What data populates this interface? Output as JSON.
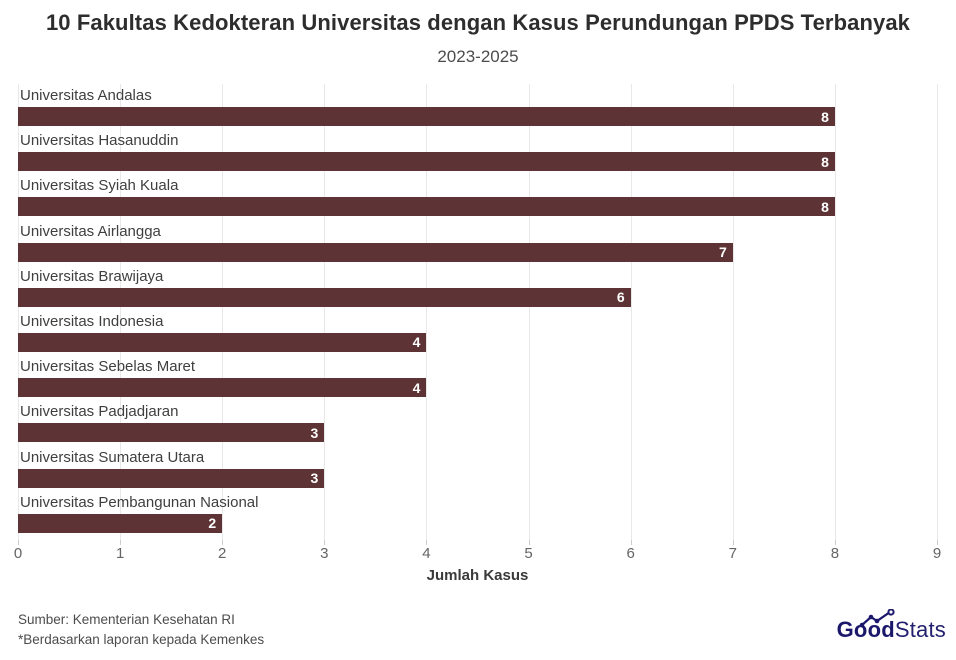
{
  "header": {
    "title": "10 Fakultas Kedokteran Universitas dengan Kasus Perundungan PPDS Terbanyak",
    "subtitle": "2023-2025"
  },
  "chart_data": {
    "type": "bar",
    "orientation": "horizontal",
    "title": "10 Fakultas Kedokteran Universitas dengan Kasus Perundungan PPDS Terbanyak",
    "subtitle": "2023-2025",
    "categories": [
      "Universitas Andalas",
      "Universitas Hasanuddin",
      "Universitas Syiah Kuala",
      "Universitas Airlangga",
      "Universitas Brawijaya",
      "Universitas Indonesia",
      "Universitas Sebelas Maret",
      "Universitas Padjadjaran",
      "Universitas Sumatera Utara",
      "Universitas Pembangunan Nasional"
    ],
    "values": [
      8,
      8,
      8,
      7,
      6,
      4,
      4,
      3,
      3,
      2
    ],
    "xlabel": "Jumlah Kasus",
    "xlim": [
      0,
      9
    ],
    "xticks": [
      0,
      1,
      2,
      3,
      4,
      5,
      6,
      7,
      8,
      9
    ],
    "grid": true,
    "legend": false,
    "value_labels": "inside-end"
  },
  "footer": {
    "source": "Sumber: Kementerian Kesehatan RI",
    "footnote": "*Berdasarkan laporan kepada Kemenkes",
    "logo_bold": "Good",
    "logo_light": "Stats"
  },
  "colors": {
    "bar": "#5e3335",
    "bar_value_text": "#ffffff",
    "gridline": "#e8e8e8",
    "logo_navy": "#1b186b",
    "title_text": "#2d2d2d",
    "subtitle_text": "#4c4c4c",
    "category_text": "#3f3f3f",
    "tick_text": "#646464"
  }
}
